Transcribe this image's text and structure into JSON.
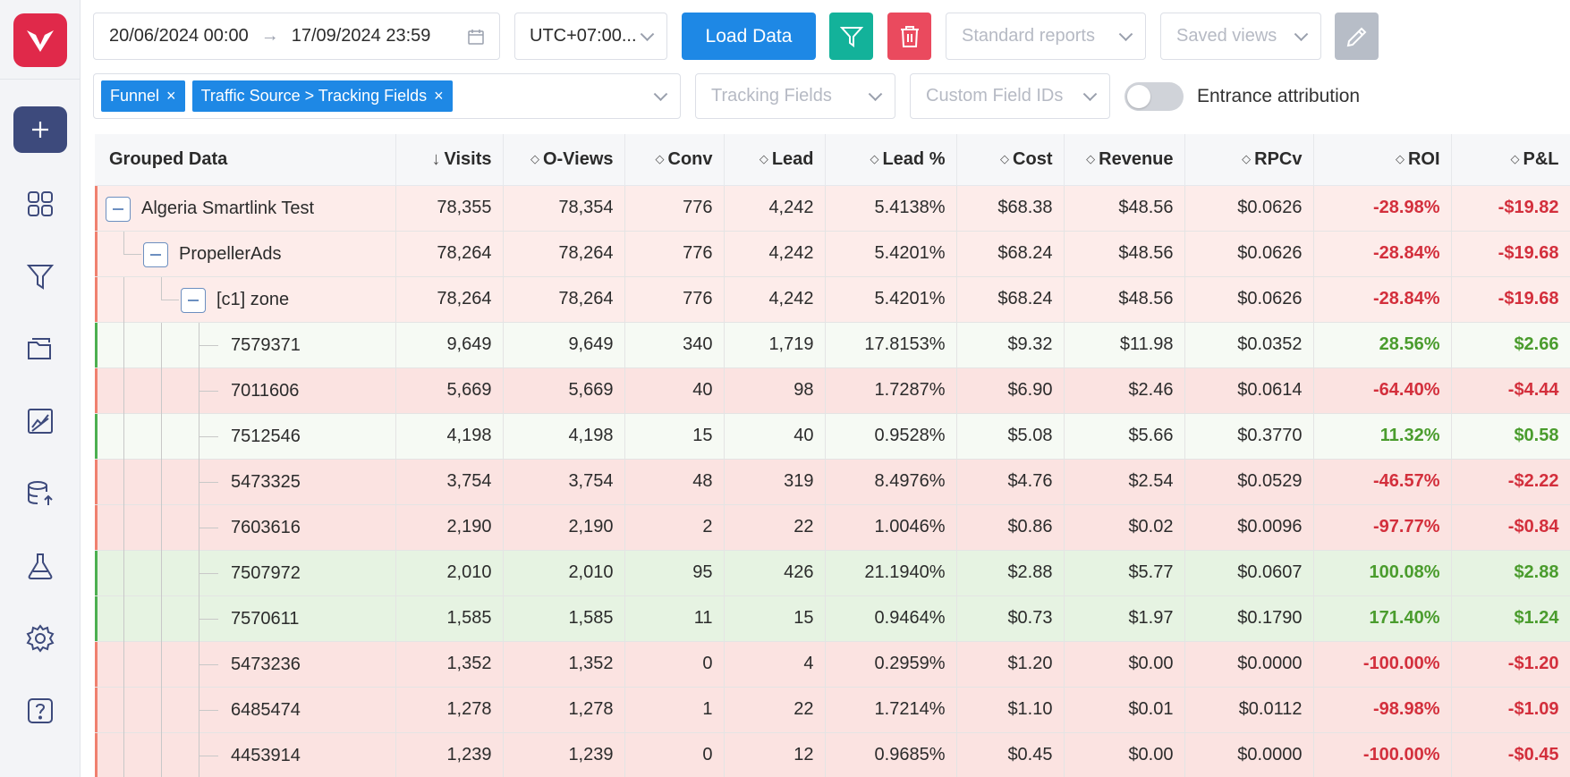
{
  "toolbar": {
    "date_start": "20/06/2024 00:00",
    "date_arrow": "→",
    "date_end": "17/09/2024 23:59",
    "timezone": "UTC+07:00...",
    "load_label": "Load Data",
    "standard_reports_placeholder": "Standard reports",
    "saved_views_placeholder": "Saved views"
  },
  "filters": {
    "tags": [
      "Funnel",
      "Traffic Source > Tracking Fields"
    ],
    "tag_remove": "×",
    "tracking_fields_placeholder": "Tracking Fields",
    "custom_field_ids_placeholder": "Custom Field IDs",
    "entrance_attribution_label": "Entrance attribution",
    "entrance_attribution_on": false
  },
  "sidebar": {
    "icons": [
      "logo-icon",
      "plus-icon",
      "dashboard-icon",
      "funnel-icon",
      "folder-icon",
      "chart-icon",
      "database-upload-icon",
      "flask-icon",
      "gear-icon",
      "help-icon"
    ]
  },
  "table": {
    "columns": [
      "Grouped Data",
      "Visits",
      "O-Views",
      "Conv",
      "Lead",
      "Lead %",
      "Cost",
      "Revenue",
      "RPCv",
      "ROI",
      "P&L"
    ],
    "sort_desc_icon": "↓",
    "sort_icon": "◇",
    "rows": [
      {
        "name": "Algeria Smartlink Test",
        "level": 0,
        "status": "neg",
        "cells": [
          "78,355",
          "78,354",
          "776",
          "4,242",
          "5.4138%",
          "$68.38",
          "$48.56",
          "$0.0626",
          "-28.98%",
          "-$19.82"
        ]
      },
      {
        "name": "PropellerAds",
        "level": 1,
        "status": "neg",
        "cells": [
          "78,264",
          "78,264",
          "776",
          "4,242",
          "5.4201%",
          "$68.24",
          "$48.56",
          "$0.0626",
          "-28.84%",
          "-$19.68"
        ]
      },
      {
        "name": "[c1] zone",
        "level": 2,
        "status": "neg",
        "cells": [
          "78,264",
          "78,264",
          "776",
          "4,242",
          "5.4201%",
          "$68.24",
          "$48.56",
          "$0.0626",
          "-28.84%",
          "-$19.68"
        ]
      },
      {
        "name": "7579371",
        "level": 3,
        "status": "pale",
        "cells": [
          "9,649",
          "9,649",
          "340",
          "1,719",
          "17.8153%",
          "$9.32",
          "$11.98",
          "$0.0352",
          "28.56%",
          "$2.66"
        ]
      },
      {
        "name": "7011606",
        "level": 3,
        "status": "neg",
        "cells": [
          "5,669",
          "5,669",
          "40",
          "98",
          "1.7287%",
          "$6.90",
          "$2.46",
          "$0.0614",
          "-64.40%",
          "-$4.44"
        ]
      },
      {
        "name": "7512546",
        "level": 3,
        "status": "pale",
        "cells": [
          "4,198",
          "4,198",
          "15",
          "40",
          "0.9528%",
          "$5.08",
          "$5.66",
          "$0.3770",
          "11.32%",
          "$0.58"
        ]
      },
      {
        "name": "5473325",
        "level": 3,
        "status": "neg",
        "cells": [
          "3,754",
          "3,754",
          "48",
          "319",
          "8.4976%",
          "$4.76",
          "$2.54",
          "$0.0529",
          "-46.57%",
          "-$2.22"
        ]
      },
      {
        "name": "7603616",
        "level": 3,
        "status": "neg",
        "cells": [
          "2,190",
          "2,190",
          "2",
          "22",
          "1.0046%",
          "$0.86",
          "$0.02",
          "$0.0096",
          "-97.77%",
          "-$0.84"
        ]
      },
      {
        "name": "7507972",
        "level": 3,
        "status": "pos",
        "cells": [
          "2,010",
          "2,010",
          "95",
          "426",
          "21.1940%",
          "$2.88",
          "$5.77",
          "$0.0607",
          "100.08%",
          "$2.88"
        ]
      },
      {
        "name": "7570611",
        "level": 3,
        "status": "pos",
        "cells": [
          "1,585",
          "1,585",
          "11",
          "15",
          "0.9464%",
          "$0.73",
          "$1.97",
          "$0.1790",
          "171.40%",
          "$1.24"
        ]
      },
      {
        "name": "5473236",
        "level": 3,
        "status": "neg",
        "cells": [
          "1,352",
          "1,352",
          "0",
          "4",
          "0.2959%",
          "$1.20",
          "$0.00",
          "$0.0000",
          "-100.00%",
          "-$1.20"
        ]
      },
      {
        "name": "6485474",
        "level": 3,
        "status": "neg",
        "cells": [
          "1,278",
          "1,278",
          "1",
          "22",
          "1.7214%",
          "$1.10",
          "$0.01",
          "$0.0112",
          "-98.98%",
          "-$1.09"
        ]
      },
      {
        "name": "4453914",
        "level": 3,
        "status": "neg",
        "cells": [
          "1,239",
          "1,239",
          "0",
          "12",
          "0.9685%",
          "$0.45",
          "$0.00",
          "$0.0000",
          "-100.00%",
          "-$0.45"
        ]
      }
    ]
  },
  "colors": {
    "accent": "#1e88e5",
    "brand": "#e0294a",
    "negative": "#d32f3c",
    "positive": "#4a9c2d"
  }
}
